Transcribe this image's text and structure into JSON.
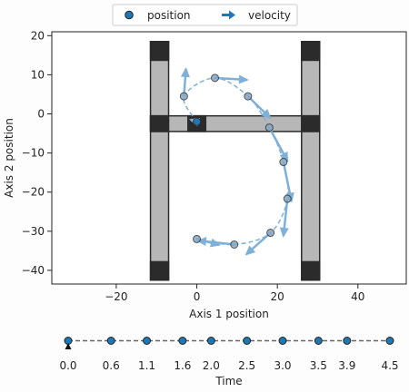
{
  "legend": {
    "position_label": "position",
    "velocity_label": "velocity"
  },
  "chart_data": [
    {
      "type": "scatter",
      "title": "",
      "xlabel": "Axis 1 position",
      "ylabel": "Axis 2 position",
      "xlim": [
        -36,
        52
      ],
      "ylim": [
        -43.5,
        21
      ],
      "x_ticks": [
        "−20",
        "0",
        "20",
        "40"
      ],
      "x_tick_values": [
        -20,
        0,
        20,
        40
      ],
      "y_ticks": [
        "20",
        "10",
        "0",
        "−10",
        "−20",
        "−30",
        "−40"
      ],
      "y_tick_values": [
        20,
        10,
        0,
        -10,
        -20,
        -30,
        -40
      ],
      "grid": false,
      "legend_placement": "top-center",
      "series": [
        {
          "name": "position",
          "x": [
            0,
            -3.2,
            4.5,
            12.7,
            18.0,
            21.5,
            22.5,
            18.3,
            9.3,
            0
          ],
          "y": [
            -2,
            4.5,
            9.2,
            4.5,
            -3.5,
            -12.3,
            -21.7,
            -30.4,
            -33.4,
            -32
          ],
          "color": "#1f77b4"
        },
        {
          "name": "velocity",
          "type": "quiver",
          "x": [
            0,
            -3.2,
            4.5,
            12.7,
            18.0,
            21.5,
            22.5,
            18.3,
            9.3,
            0
          ],
          "y": [
            -2,
            4.5,
            9.2,
            4.5,
            -3.5,
            -12.3,
            -21.7,
            -30.4,
            -33.4,
            -32
          ],
          "u": [
            -1.5,
            0.5,
            8.0,
            5.5,
            4.5,
            2.0,
            -1.0,
            -6.0,
            -9.0,
            5.5
          ],
          "v": [
            0.5,
            7.0,
            -0.5,
            -5.5,
            -8.5,
            -10.0,
            -9.5,
            -5.5,
            1.0,
            -1.5
          ],
          "color": "#1f77b4"
        }
      ],
      "background_shape": "H",
      "background_fill": "#b7b7b7",
      "background_edge": "#2b2b2b"
    },
    {
      "type": "timeline",
      "xlabel": "Time",
      "values": [
        0.0,
        0.6,
        1.1,
        1.6,
        2.0,
        2.5,
        3.0,
        3.5,
        3.9,
        4.5
      ],
      "tick_labels": [
        "0.0",
        "0.6",
        "1.1",
        "1.6",
        "2.0",
        "2.5",
        "3.0",
        "3.5",
        "3.9",
        "4.5"
      ],
      "marker_color": "#1f77b4"
    }
  ]
}
